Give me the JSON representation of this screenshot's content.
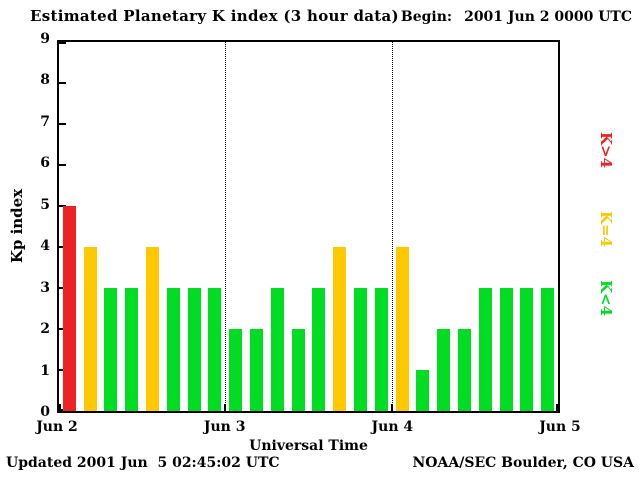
{
  "header": {
    "title": "Estimated Planetary K index (3 hour data)",
    "begin_label": "Begin:",
    "begin_value": "2001 Jun 2 0000 UTC"
  },
  "footer": {
    "updated": "Updated 2001 Jun  5 02:45:02 UTC",
    "credit": "NOAA/SEC Boulder, CO USA"
  },
  "chart_data": {
    "type": "bar",
    "title": "Estimated Planetary K index (3 hour data)",
    "xlabel": "Universal Time",
    "ylabel": "Kp index",
    "ylim": [
      0,
      9
    ],
    "yticks": [
      0,
      1,
      2,
      3,
      4,
      5,
      6,
      7,
      8,
      9
    ],
    "x_tick_labels": [
      "Jun 2",
      "Jun 3",
      "Jun 4",
      "Jun 5"
    ],
    "hours_per_bar": 3,
    "bars_per_day": 8,
    "values": [
      5,
      4,
      3,
      3,
      4,
      3,
      3,
      3,
      2,
      2,
      3,
      2,
      3,
      4,
      3,
      3,
      4,
      1,
      2,
      2,
      3,
      3,
      3,
      3
    ],
    "color_rule": {
      "below_4": "#00dd22",
      "equal_4": "#ffc800",
      "above_4": "#ee2222"
    },
    "legend": [
      {
        "label": "K>4",
        "color": "#ee2222"
      },
      {
        "label": "K=4",
        "color": "#ffc800"
      },
      {
        "label": "K<4",
        "color": "#00dd22"
      }
    ],
    "grid": "dotted vertical lines at day boundaries (Jun 3, Jun 4)",
    "axis_color": "#000000",
    "background": "#ffffff"
  }
}
